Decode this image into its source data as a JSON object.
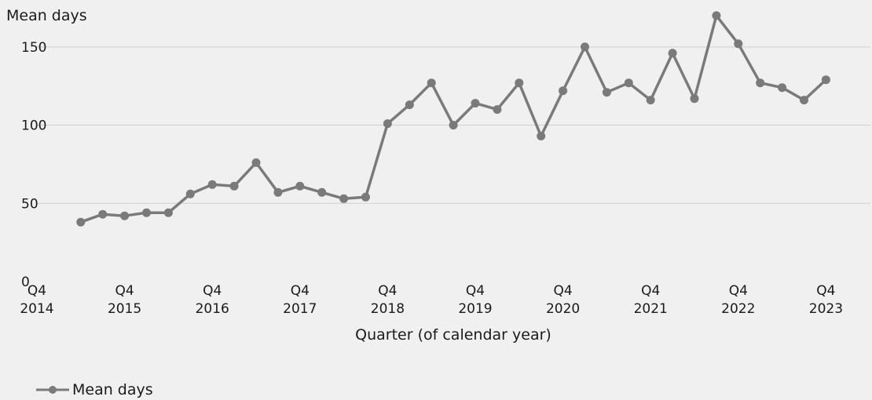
{
  "chart_data": {
    "type": "line",
    "ylabel": "Mean days",
    "xlabel": "Quarter (of calendar year)",
    "ylim": [
      0,
      180
    ],
    "yticks": [
      0,
      50,
      100,
      150
    ],
    "grid": true,
    "legend_position": "bottom-left",
    "x_tick_labels": [
      {
        "quarter": "Q4",
        "year": "2014"
      },
      {
        "quarter": "Q4",
        "year": "2015"
      },
      {
        "quarter": "Q4",
        "year": "2016"
      },
      {
        "quarter": "Q4",
        "year": "2017"
      },
      {
        "quarter": "Q4",
        "year": "2018"
      },
      {
        "quarter": "Q4",
        "year": "2019"
      },
      {
        "quarter": "Q4",
        "year": "2020"
      },
      {
        "quarter": "Q4",
        "year": "2021"
      },
      {
        "quarter": "Q4",
        "year": "2022"
      },
      {
        "quarter": "Q4",
        "year": "2023"
      }
    ],
    "x": [
      "Q2 2015",
      "Q3 2015",
      "Q4 2015",
      "Q1 2016",
      "Q2 2016",
      "Q3 2016",
      "Q4 2016",
      "Q1 2017",
      "Q2 2017",
      "Q3 2017",
      "Q4 2017",
      "Q1 2018",
      "Q2 2018",
      "Q3 2018",
      "Q4 2018",
      "Q1 2019",
      "Q2 2019",
      "Q3 2019",
      "Q4 2019",
      "Q1 2020",
      "Q2 2020",
      "Q3 2020",
      "Q4 2020",
      "Q1 2021",
      "Q2 2021",
      "Q3 2021",
      "Q4 2021",
      "Q1 2022",
      "Q2 2022",
      "Q3 2022",
      "Q4 2022",
      "Q1 2023",
      "Q2 2023",
      "Q3 2023",
      "Q4 2023"
    ],
    "series": [
      {
        "name": "Mean days",
        "color": "#7a7a7a",
        "values": [
          38,
          43,
          42,
          44,
          44,
          56,
          62,
          61,
          76,
          57,
          61,
          57,
          53,
          54,
          101,
          113,
          127,
          100,
          114,
          110,
          127,
          93,
          122,
          150,
          121,
          127,
          116,
          146,
          117,
          170,
          152,
          127,
          124,
          116,
          129
        ]
      }
    ]
  }
}
